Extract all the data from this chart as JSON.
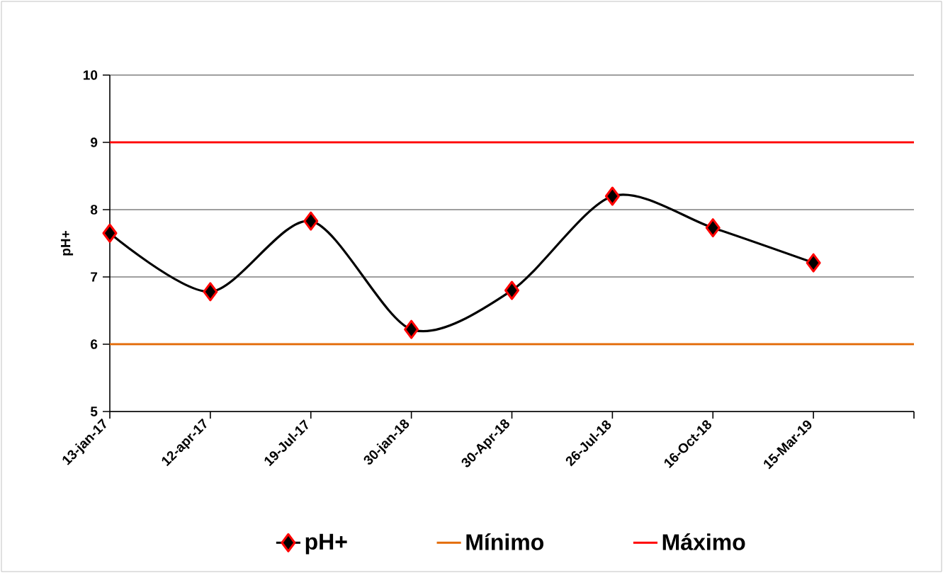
{
  "chart_data": {
    "type": "line",
    "ylabel": "pH+",
    "categories": [
      "13-jan-17",
      "12-apr-17",
      "19-Jul-17",
      "30-jan-18",
      "30-Apr-18",
      "26-Jul-18",
      "16-Oct-18",
      "15-Mar-19",
      null
    ],
    "series": [
      {
        "name": "pH+",
        "color": "#000000",
        "values": [
          7.65,
          6.78,
          7.83,
          6.22,
          6.8,
          8.2,
          7.73,
          7.21,
          null
        ],
        "marker": "diamond"
      },
      {
        "name": "Mínimo",
        "color": "#e36c09",
        "values": [
          6,
          6,
          6,
          6,
          6,
          6,
          6,
          6,
          6
        ],
        "marker": "none"
      },
      {
        "name": "Máximo",
        "color": "#ff0000",
        "values": [
          9,
          9,
          9,
          9,
          9,
          9,
          9,
          9,
          9
        ],
        "marker": "none"
      }
    ],
    "ylim": [
      5,
      10
    ],
    "yticks": [
      5,
      6,
      7,
      8,
      9,
      10
    ],
    "grid": "y",
    "legend": "bottom",
    "line_style": "solid"
  }
}
